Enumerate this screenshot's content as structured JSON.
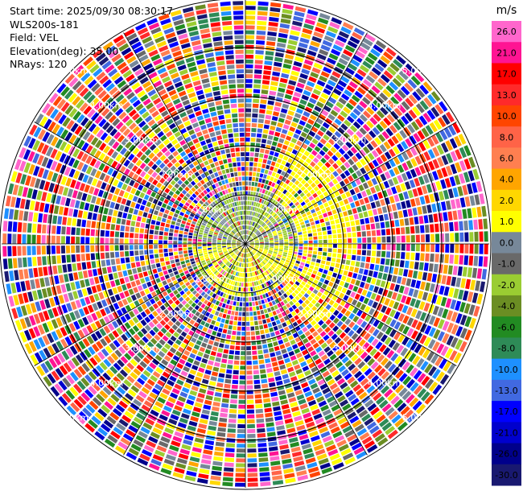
{
  "header": {
    "start_time": "Start time: 2025/09/30 08:30:17",
    "instrument": "WLS200s-181",
    "field": "Field: VEL",
    "elevation": "Elevation(deg): 35.00",
    "nrays": "NRays: 120"
  },
  "chart_data": {
    "type": "heatmap",
    "projection": "polar-ppi",
    "field": "VEL",
    "units": "m/s",
    "elevation_deg": 35.0,
    "nrays": 120,
    "range_rings_km": [
      1,
      2,
      3,
      4,
      5
    ],
    "range_labels": [
      "1.00km",
      "2.00km",
      "3.00km",
      "4.00km",
      "5.00km"
    ],
    "colorbar": {
      "unit_label": "m/s",
      "ticks": [
        "26.0",
        "21.0",
        "17.0",
        "13.0",
        "10.0",
        "8.0",
        "6.0",
        "4.0",
        "2.0",
        "1.0",
        "0.0",
        "-1.0",
        "-2.0",
        "-4.0",
        "-6.0",
        "-8.0",
        "-10.0",
        "-13.0",
        "-17.0",
        "-21.0",
        "-26.0",
        "-30.0"
      ],
      "colors": [
        "#ff66cc",
        "#ff1493",
        "#ff0000",
        "#ff2a2a",
        "#ff4500",
        "#ff6347",
        "#ff7f50",
        "#ffa500",
        "#ffd700",
        "#ffff00",
        "#778899",
        "#696969",
        "#9acd32",
        "#6b8e23",
        "#228b22",
        "#2e8b57",
        "#1e90ff",
        "#4169e1",
        "#0000ff",
        "#0000cd",
        "#00008b",
        "#191970"
      ]
    }
  }
}
